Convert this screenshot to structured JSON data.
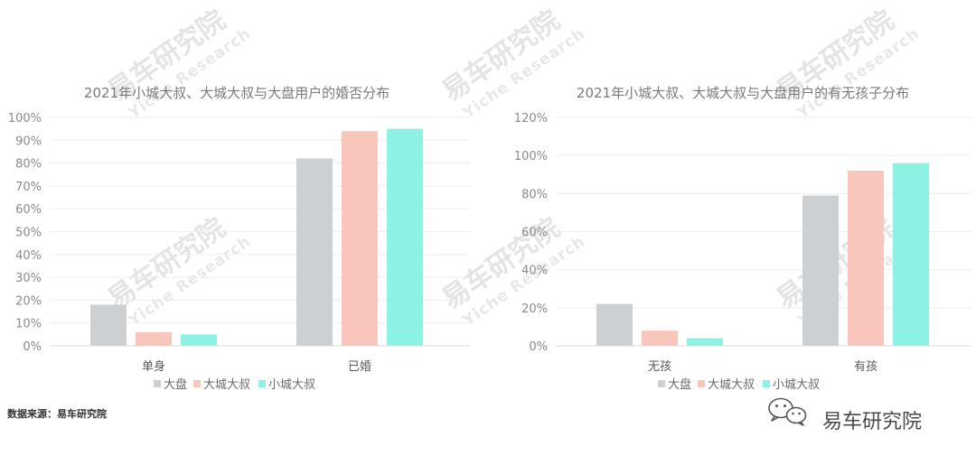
{
  "chart_data": [
    {
      "type": "bar",
      "title": "2021年小城大叔、大城大叔与大盘用户的婚否分布",
      "categories": [
        "单身",
        "已婚"
      ],
      "series": [
        {
          "name": "大盘",
          "values": [
            18,
            82
          ]
        },
        {
          "name": "大城大叔",
          "values": [
            6,
            94
          ]
        },
        {
          "name": "小城大叔",
          "values": [
            5,
            95
          ]
        }
      ],
      "ylim": [
        0,
        100
      ],
      "yticks": [
        "0%",
        "10%",
        "20%",
        "30%",
        "40%",
        "50%",
        "60%",
        "70%",
        "80%",
        "90%",
        "100%"
      ],
      "grid": true,
      "legend_position": "bottom"
    },
    {
      "type": "bar",
      "title": "2021年小城大叔、大城大叔与大盘用户的有无孩子分布",
      "categories": [
        "无孩",
        "有孩"
      ],
      "series": [
        {
          "name": "大盘",
          "values": [
            22,
            79
          ]
        },
        {
          "name": "大城大叔",
          "values": [
            8,
            92
          ]
        },
        {
          "name": "小城大叔",
          "values": [
            4,
            96
          ]
        }
      ],
      "ylim": [
        0,
        120
      ],
      "yticks": [
        "0%",
        "20%",
        "40%",
        "60%",
        "80%",
        "100%",
        "120%"
      ],
      "grid": true,
      "legend_position": "bottom"
    }
  ],
  "colors": {
    "series": [
      "#cdd0d3",
      "#f9c6bc",
      "#8cf2e3"
    ],
    "grid": "#eeeeee",
    "axis": "#d9d9d9"
  },
  "source_text": "数据来源：易车研究院",
  "brand": {
    "name": "易车研究院",
    "icon": "wechat-icon"
  },
  "watermark": {
    "text": "易车研究院",
    "sub": "Yiche Research"
  }
}
